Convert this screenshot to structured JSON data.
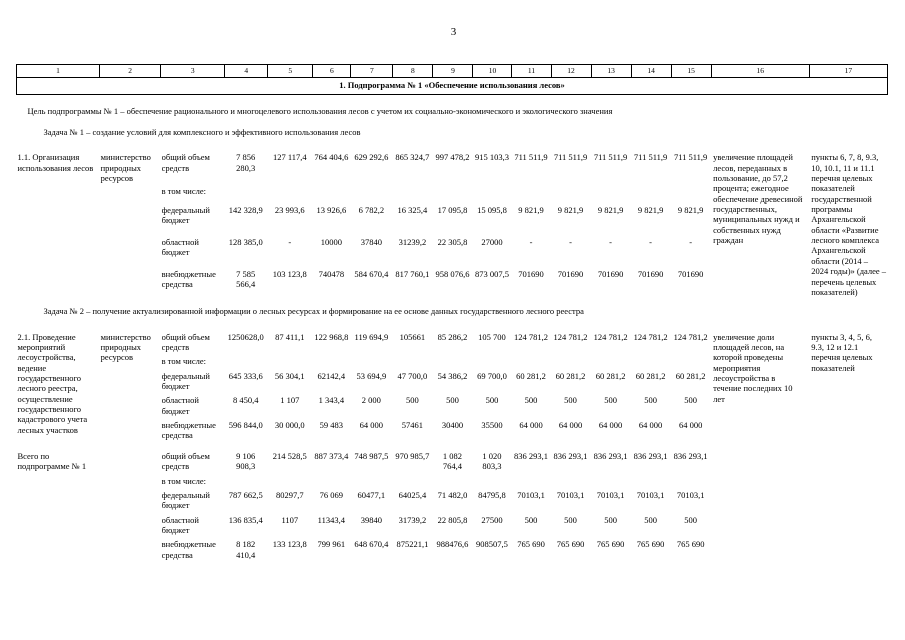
{
  "page": {
    "number": "3"
  },
  "table": {
    "column_numbers": [
      "1",
      "2",
      "3",
      "4",
      "5",
      "6",
      "7",
      "8",
      "9",
      "10",
      "11",
      "12",
      "13",
      "14",
      "15",
      "16",
      "17"
    ],
    "section_title": "1. Подпрограмма № 1 «Обеспечение использования лесов»",
    "blocks": [
      {
        "type": "text",
        "name": "goal-text",
        "style": "goal",
        "text": "Цель подпрограммы № 1 – обеспечение рационального и многоцелевого использования лесов с учетом их социально-экономического и экологического значения"
      },
      {
        "type": "text",
        "name": "task-1-text",
        "style": "task",
        "text": "Задача № 1 – создание условий для комплексного и эффективного использования лесов"
      },
      {
        "type": "row",
        "row": {
          "title": "1.1. Организация использования лесов",
          "executor": "министерство природных ресурсов",
          "lines": [
            {
              "label": "общий объем средств",
              "values": [
                "7 856 280,3",
                "127 117,4",
                "764 404,6",
                "629 292,6",
                "865 324,7",
                "997 478,2",
                "915 103,3",
                "711 511,9",
                "711 511,9",
                "711 511,9",
                "711 511,9",
                "711 511,9"
              ]
            },
            {
              "label": "в том числе:",
              "values": []
            },
            {
              "label": "федеральный бюджет",
              "values": [
                "142 328,9",
                "23 993,6",
                "13 926,6",
                "6 782,2",
                "16 325,4",
                "17 095,8",
                "15 095,8",
                "9 821,9",
                "9 821,9",
                "9 821,9",
                "9 821,9",
                "9 821,9"
              ]
            },
            {
              "label": "областной бюджет",
              "values": [
                "128 385,0",
                "-",
                "10000",
                "37840",
                "31239,2",
                "22 305,8",
                "27000",
                "-",
                "-",
                "-",
                "-",
                "-"
              ]
            },
            {
              "label": "внебюджетные средства",
              "values": [
                "7 585 566,4",
                "103 123,8",
                "740478",
                "584 670,4",
                "817 760,1",
                "958 076,6",
                "873 007,5",
                "701690",
                "701690",
                "701690",
                "701690",
                "701690"
              ]
            }
          ],
          "result": "увеличение площадей лесов, переданных в пользование, до 57,2 процента; ежегодное обеспечение древесиной государственных, муниципальных нужд и собственных нужд граждан",
          "targets": "пункты 6, 7, 8, 9.3, 10, 10.1, 11 и 11.1 перечня целевых показателей государственной программы Архангельской области «Развитие лесного комплекса Архангельской области (2014 – 2024 годы)» (далее – перечень целевых показателей)"
        }
      },
      {
        "type": "text",
        "name": "task-2-text",
        "style": "task",
        "text": "Задача № 2 – получение актуализированной информации о лесных ресурсах и формирование на ее основе данных государственного лесного реестра"
      },
      {
        "type": "row",
        "row": {
          "title": "2.1. Проведение мероприятий лесоустройства, ведение государственного лесного реестра, осуществление государственного кадастрового учета лесных участков",
          "executor": "министерство природных ресурсов",
          "lines": [
            {
              "label": "общий объем средств",
              "values": [
                "1250628,0",
                "87 411,1",
                "122 968,8",
                "119 694,9",
                "105661",
                "85 286,2",
                "105 700",
                "124 781,2",
                "124 781,2",
                "124 781,2",
                "124 781,2",
                "124 781,2"
              ]
            },
            {
              "label": "в том числе:",
              "values": []
            },
            {
              "label": "федеральный бюджет",
              "values": [
                "645 333,6",
                "56 304,1",
                "62142,4",
                "53 694,9",
                "47 700,0",
                "54 386,2",
                "69 700,0",
                "60 281,2",
                "60 281,2",
                "60 281,2",
                "60 281,2",
                "60 281,2"
              ]
            },
            {
              "label": "областной бюджет",
              "values": [
                "8 450,4",
                "1 107",
                "1 343,4",
                "2 000",
                "500",
                "500",
                "500",
                "500",
                "500",
                "500",
                "500",
                "500"
              ]
            },
            {
              "label": "внебюджетные средства",
              "values": [
                "596 844,0",
                "30 000,0",
                "59 483",
                "64 000",
                "57461",
                "30400",
                "35500",
                "64 000",
                "64 000",
                "64 000",
                "64 000",
                "64 000"
              ]
            }
          ],
          "result": "увеличение доли площадей лесов, на которой проведены мероприятия лесоустройства в течение последних 10 лет",
          "targets": "пункты 3, 4, 5, 6, 9.3, 12 и 12.1 перечня целевых показателей"
        }
      },
      {
        "type": "row",
        "row": {
          "title": "Всего по подпрограмме № 1",
          "executor": "",
          "lines": [
            {
              "label": "общий объем средств",
              "values": [
                "9 106 908,3",
                "214 528,5",
                "887 373,4",
                "748 987,5",
                "970 985,7",
                "1 082 764,4",
                "1 020 803,3",
                "836 293,1",
                "836 293,1",
                "836 293,1",
                "836 293,1",
                "836 293,1"
              ]
            },
            {
              "label": "в том числе:",
              "values": []
            },
            {
              "label": "федеральный бюджет",
              "values": [
                "787 662,5",
                "80297,7",
                "76 069",
                "60477,1",
                "64025,4",
                "71 482,0",
                "84795,8",
                "70103,1",
                "70103,1",
                "70103,1",
                "70103,1",
                "70103,1"
              ]
            },
            {
              "label": "областной бюджет",
              "values": [
                "136 835,4",
                "1107",
                "11343,4",
                "39840",
                "31739,2",
                "22 805,8",
                "27500",
                "500",
                "500",
                "500",
                "500",
                "500"
              ]
            },
            {
              "label": "внебюджетные средства",
              "values": [
                "8 182 410,4",
                "133 123,8",
                "799 961",
                "648 670,4",
                "875221,1",
                "988476,6",
                "908507,5",
                "765 690",
                "765 690",
                "765 690",
                "765 690",
                "765 690"
              ]
            }
          ],
          "result": "",
          "targets": ""
        }
      }
    ]
  }
}
